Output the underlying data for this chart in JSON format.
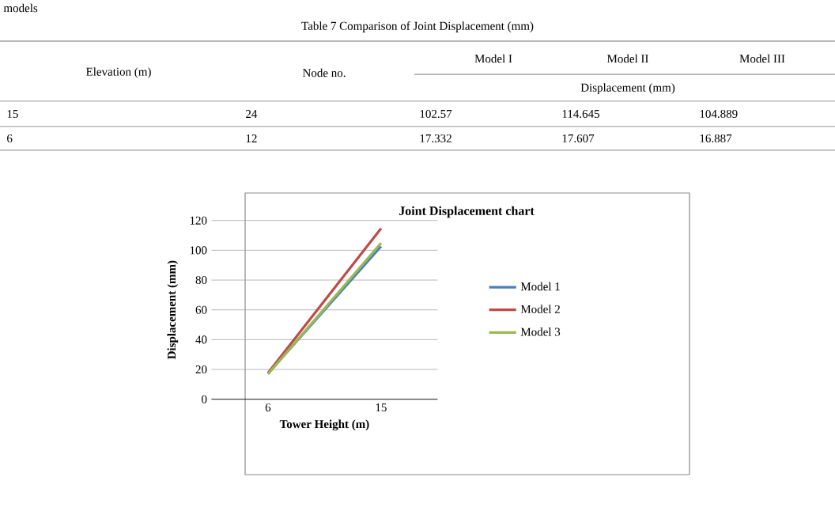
{
  "chart_data": {
    "type": "line",
    "title": "Joint Displacement chart",
    "xlabel": "Tower Height (m)",
    "ylabel": "Displacement (mm)",
    "categories": [
      "6",
      "15"
    ],
    "series": [
      {
        "name": "Model 1",
        "color": "#4a7ebb",
        "values": [
          17.332,
          102.57
        ]
      },
      {
        "name": "Model 2",
        "color": "#be4b48",
        "values": [
          17.607,
          114.645
        ]
      },
      {
        "name": "Model 3",
        "color": "#98b954",
        "values": [
          16.887,
          104.889
        ]
      }
    ],
    "ylim": [
      0,
      120
    ],
    "yticks": [
      0,
      20,
      40,
      60,
      80,
      100,
      120
    ],
    "grid": "y",
    "legend": "right",
    "marker": "none",
    "line_style": "solid",
    "annotations": [
      "models",
      "Table 7 Comparison of Joint Displacement (mm)",
      "Elevation (m)",
      "Node no.",
      "Model I",
      "Model II",
      "Model III",
      "Displacement (mm)",
      "15",
      "24",
      "102.57",
      "114.645",
      "104.889",
      "6",
      "12",
      "17.332",
      "17.607",
      "16.887"
    ]
  }
}
